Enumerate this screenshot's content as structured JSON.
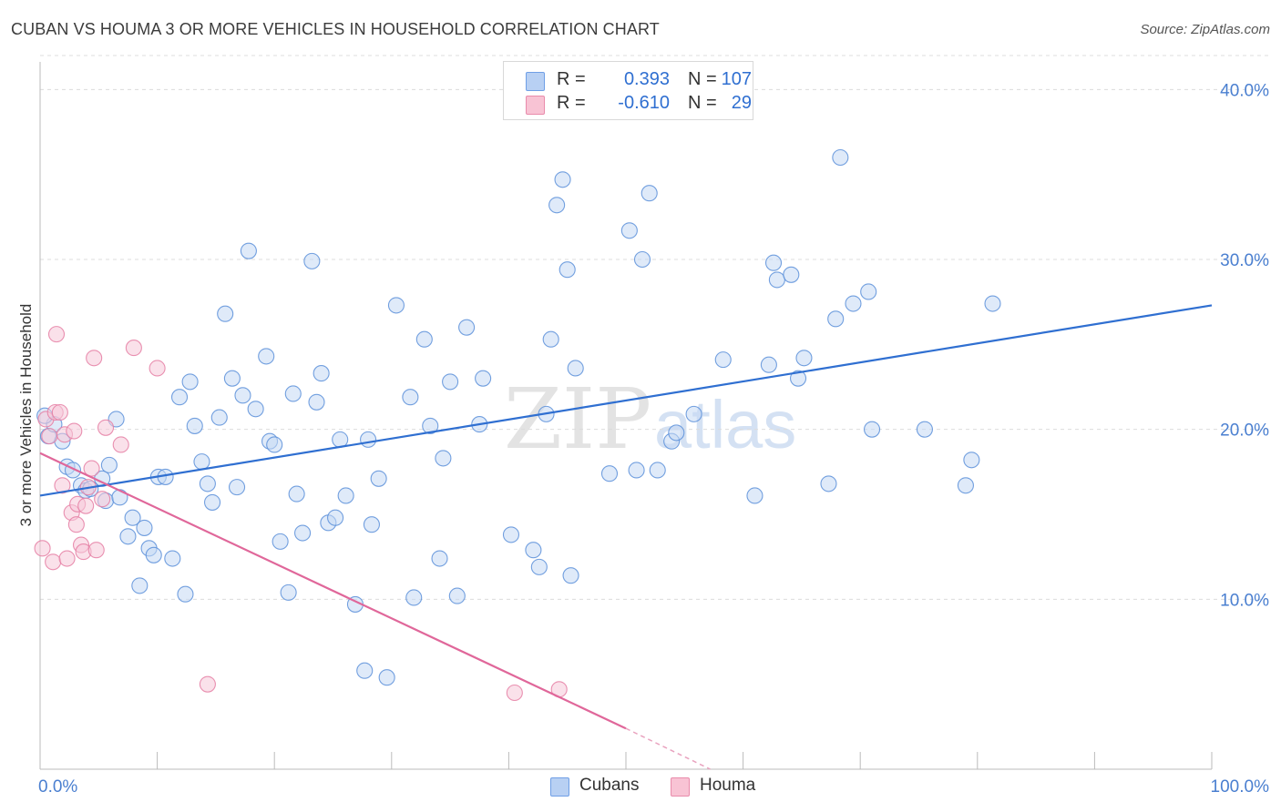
{
  "title": "CUBAN VS HOUMA 3 OR MORE VEHICLES IN HOUSEHOLD CORRELATION CHART",
  "source": "Source: ZipAtlas.com",
  "watermark": {
    "zip": "ZIP",
    "atlas": "atlas"
  },
  "legend": {
    "rows": [
      {
        "r_label": "R =",
        "r_value": "0.393",
        "n_label": "N =",
        "n_value": "107",
        "color": "#6f9fe6",
        "fill": "#b8d0f3"
      },
      {
        "r_label": "R =",
        "r_value": "-0.610",
        "n_label": "N =",
        "n_value": "29",
        "color": "#e98bab",
        "fill": "#f8c3d4"
      }
    ]
  },
  "bottom_legend": {
    "cubans": "Cubans",
    "houma": "Houma"
  },
  "chart_data": {
    "type": "scatter",
    "title": "CUBAN VS HOUMA 3 OR MORE VEHICLES IN HOUSEHOLD CORRELATION CHART",
    "xlabel": "",
    "ylabel": "3 or more Vehicles in Household",
    "xlim": [
      0,
      100
    ],
    "ylim": [
      0,
      42
    ],
    "x_tick_labels": [
      "0.0%",
      "100.0%"
    ],
    "y_ticks": [
      10,
      20,
      30,
      40
    ],
    "y_tick_labels": [
      "10.0%",
      "20.0%",
      "30.0%",
      "40.0%"
    ],
    "grid": true,
    "series": [
      {
        "name": "Cubans",
        "color": "#5b8fd9",
        "fill": "#c5d8f4",
        "trend": {
          "x": [
            0,
            100
          ],
          "y": [
            16.1,
            27.3
          ]
        },
        "points": [
          [
            0.7,
            19.6
          ],
          [
            1.2,
            20.3
          ],
          [
            1.9,
            19.3
          ],
          [
            2.3,
            17.8
          ],
          [
            2.8,
            17.6
          ],
          [
            3.5,
            16.7
          ],
          [
            3.9,
            16.4
          ],
          [
            4.3,
            16.5
          ],
          [
            5.3,
            17.1
          ],
          [
            5.6,
            15.8
          ],
          [
            5.9,
            17.9
          ],
          [
            6.5,
            20.6
          ],
          [
            6.8,
            16.0
          ],
          [
            7.5,
            13.7
          ],
          [
            7.9,
            14.8
          ],
          [
            8.5,
            10.8
          ],
          [
            8.9,
            14.2
          ],
          [
            9.3,
            13.0
          ],
          [
            9.7,
            12.6
          ],
          [
            10.1,
            17.2
          ],
          [
            10.7,
            17.2
          ],
          [
            11.3,
            12.4
          ],
          [
            11.9,
            21.9
          ],
          [
            12.4,
            10.3
          ],
          [
            12.8,
            22.8
          ],
          [
            13.2,
            20.2
          ],
          [
            13.8,
            18.1
          ],
          [
            14.3,
            16.8
          ],
          [
            14.7,
            15.7
          ],
          [
            15.3,
            20.7
          ],
          [
            15.8,
            26.8
          ],
          [
            16.4,
            23.0
          ],
          [
            16.8,
            16.6
          ],
          [
            17.3,
            22.0
          ],
          [
            17.8,
            30.5
          ],
          [
            18.4,
            21.2
          ],
          [
            19.3,
            24.3
          ],
          [
            19.6,
            19.3
          ],
          [
            20.0,
            19.1
          ],
          [
            20.5,
            13.4
          ],
          [
            21.2,
            10.4
          ],
          [
            21.6,
            22.1
          ],
          [
            21.9,
            16.2
          ],
          [
            22.4,
            13.9
          ],
          [
            23.2,
            29.9
          ],
          [
            23.6,
            21.6
          ],
          [
            24.0,
            23.3
          ],
          [
            24.6,
            14.5
          ],
          [
            25.2,
            14.8
          ],
          [
            25.6,
            19.4
          ],
          [
            26.1,
            16.1
          ],
          [
            26.9,
            9.7
          ],
          [
            27.7,
            5.8
          ],
          [
            28.0,
            19.4
          ],
          [
            28.3,
            14.4
          ],
          [
            28.9,
            17.1
          ],
          [
            29.6,
            5.4
          ],
          [
            30.4,
            27.3
          ],
          [
            31.6,
            21.9
          ],
          [
            31.9,
            10.1
          ],
          [
            32.8,
            25.3
          ],
          [
            33.3,
            20.2
          ],
          [
            34.1,
            12.4
          ],
          [
            34.4,
            18.3
          ],
          [
            35.0,
            22.8
          ],
          [
            35.6,
            10.2
          ],
          [
            36.4,
            26.0
          ],
          [
            37.5,
            20.3
          ],
          [
            37.8,
            23.0
          ],
          [
            40.2,
            13.8
          ],
          [
            42.1,
            12.9
          ],
          [
            42.6,
            11.9
          ],
          [
            43.2,
            20.9
          ],
          [
            43.6,
            25.3
          ],
          [
            44.1,
            33.2
          ],
          [
            44.6,
            34.7
          ],
          [
            45.0,
            29.4
          ],
          [
            45.3,
            11.4
          ],
          [
            45.7,
            23.6
          ],
          [
            48.6,
            17.4
          ],
          [
            50.3,
            31.7
          ],
          [
            50.9,
            17.6
          ],
          [
            51.4,
            30.0
          ],
          [
            52.0,
            33.9
          ],
          [
            52.7,
            17.6
          ],
          [
            53.9,
            19.3
          ],
          [
            54.3,
            19.8
          ],
          [
            55.8,
            20.9
          ],
          [
            58.3,
            24.1
          ],
          [
            61.0,
            16.1
          ],
          [
            62.2,
            23.8
          ],
          [
            62.6,
            29.8
          ],
          [
            62.9,
            28.8
          ],
          [
            64.1,
            29.1
          ],
          [
            64.7,
            23.0
          ],
          [
            65.2,
            24.2
          ],
          [
            67.3,
            16.8
          ],
          [
            67.9,
            26.5
          ],
          [
            68.3,
            36.0
          ],
          [
            69.4,
            27.4
          ],
          [
            70.7,
            28.1
          ],
          [
            71.0,
            20.0
          ],
          [
            75.5,
            20.0
          ],
          [
            79.0,
            16.7
          ],
          [
            79.5,
            18.2
          ],
          [
            81.3,
            27.4
          ],
          [
            0.4,
            20.8
          ]
        ]
      },
      {
        "name": "Houma",
        "color": "#e57ea3",
        "fill": "#f6c9d8",
        "trend": {
          "x": [
            0,
            50
          ],
          "y": [
            18.6,
            2.4
          ]
        },
        "trend_dashed_extension": {
          "x": [
            50,
            57.2
          ],
          "y": [
            2.4,
            0.0
          ]
        },
        "points": [
          [
            0.2,
            13.0
          ],
          [
            0.5,
            20.6
          ],
          [
            0.8,
            19.6
          ],
          [
            1.1,
            12.2
          ],
          [
            1.3,
            21.0
          ],
          [
            1.4,
            25.6
          ],
          [
            1.7,
            21.0
          ],
          [
            1.9,
            16.7
          ],
          [
            2.1,
            19.7
          ],
          [
            2.3,
            12.4
          ],
          [
            2.7,
            15.1
          ],
          [
            2.9,
            19.9
          ],
          [
            3.1,
            14.4
          ],
          [
            3.2,
            15.6
          ],
          [
            3.5,
            13.2
          ],
          [
            3.7,
            12.8
          ],
          [
            3.9,
            15.5
          ],
          [
            4.1,
            16.6
          ],
          [
            4.4,
            17.7
          ],
          [
            4.6,
            24.2
          ],
          [
            4.8,
            12.9
          ],
          [
            5.3,
            15.9
          ],
          [
            5.6,
            20.1
          ],
          [
            6.9,
            19.1
          ],
          [
            8.0,
            24.8
          ],
          [
            10.0,
            23.6
          ],
          [
            14.3,
            5.0
          ],
          [
            40.5,
            4.5
          ],
          [
            44.3,
            4.7
          ]
        ]
      }
    ]
  }
}
